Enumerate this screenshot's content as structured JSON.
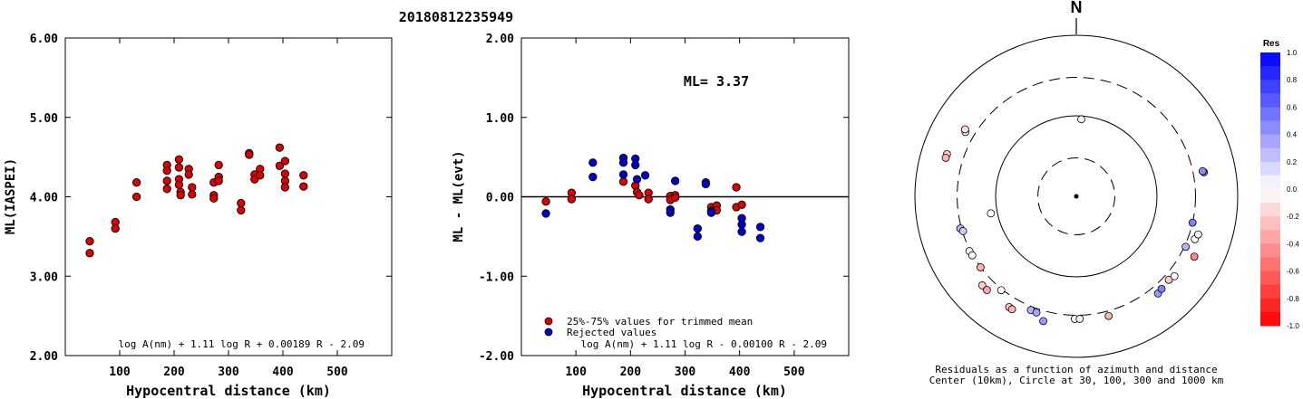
{
  "title": "20180812235949",
  "chart_data": [
    {
      "type": "scatter",
      "xlabel": "Hypocentral distance (km)",
      "ylabel": "ML(IASPEI)",
      "xlim": [
        0,
        600
      ],
      "ylim": [
        2.0,
        6.0
      ],
      "xticks": [
        "100",
        "200",
        "300",
        "400",
        "500"
      ],
      "yticks": [
        "2.00",
        "3.00",
        "4.00",
        "5.00",
        "6.00"
      ],
      "formula": "log A(nm) + 1.11 log R + 0.00189 R - 2.09",
      "points": [
        {
          "x": 45,
          "y": 3.44
        },
        {
          "x": 45,
          "y": 3.29
        },
        {
          "x": 92,
          "y": 3.68
        },
        {
          "x": 92,
          "y": 3.6
        },
        {
          "x": 131,
          "y": 4.18
        },
        {
          "x": 131,
          "y": 4.0
        },
        {
          "x": 187,
          "y": 4.4
        },
        {
          "x": 187,
          "y": 4.33
        },
        {
          "x": 187,
          "y": 4.2
        },
        {
          "x": 187,
          "y": 4.1
        },
        {
          "x": 209,
          "y": 4.47
        },
        {
          "x": 209,
          "y": 4.37
        },
        {
          "x": 209,
          "y": 4.22
        },
        {
          "x": 209,
          "y": 4.15
        },
        {
          "x": 212,
          "y": 4.06
        },
        {
          "x": 212,
          "y": 4.02
        },
        {
          "x": 227,
          "y": 4.35
        },
        {
          "x": 227,
          "y": 4.28
        },
        {
          "x": 233,
          "y": 4.12
        },
        {
          "x": 233,
          "y": 4.03
        },
        {
          "x": 273,
          "y": 4.18
        },
        {
          "x": 273,
          "y": 4.02
        },
        {
          "x": 273,
          "y": 3.98
        },
        {
          "x": 282,
          "y": 4.4
        },
        {
          "x": 282,
          "y": 4.25
        },
        {
          "x": 282,
          "y": 4.2
        },
        {
          "x": 323,
          "y": 3.92
        },
        {
          "x": 323,
          "y": 3.83
        },
        {
          "x": 338,
          "y": 4.55
        },
        {
          "x": 338,
          "y": 4.53
        },
        {
          "x": 348,
          "y": 4.28
        },
        {
          "x": 348,
          "y": 4.22
        },
        {
          "x": 358,
          "y": 4.35
        },
        {
          "x": 358,
          "y": 4.27
        },
        {
          "x": 394,
          "y": 4.62
        },
        {
          "x": 394,
          "y": 4.39
        },
        {
          "x": 404,
          "y": 4.45
        },
        {
          "x": 404,
          "y": 4.29
        },
        {
          "x": 404,
          "y": 4.2
        },
        {
          "x": 404,
          "y": 4.12
        },
        {
          "x": 438,
          "y": 4.27
        },
        {
          "x": 438,
          "y": 4.13
        }
      ]
    },
    {
      "type": "scatter",
      "xlabel": "Hypocentral distance (km)",
      "ylabel": "ML - ML(evt)",
      "xlim": [
        0,
        600
      ],
      "ylim": [
        -2.0,
        2.0
      ],
      "xticks": [
        "100",
        "200",
        "300",
        "400",
        "500"
      ],
      "yticks": [
        "-2.00",
        "-1.00",
        "0.00",
        "1.00",
        "2.00"
      ],
      "annotation": "ML= 3.37",
      "legend": [
        "25%-75% values for trimmed mean",
        "Rejected values"
      ],
      "formula": "log A(nm) + 1.11 log R - 0.00100 R - 2.09",
      "series": [
        {
          "name": "25%-75% values for trimmed mean",
          "color": "#dd0000",
          "points": [
            {
              "x": 45,
              "y": -0.06
            },
            {
              "x": 92,
              "y": 0.05
            },
            {
              "x": 92,
              "y": -0.03
            },
            {
              "x": 187,
              "y": 0.19
            },
            {
              "x": 209,
              "y": 0.14
            },
            {
              "x": 212,
              "y": 0.06
            },
            {
              "x": 216,
              "y": 0.02
            },
            {
              "x": 233,
              "y": 0.05
            },
            {
              "x": 233,
              "y": -0.03
            },
            {
              "x": 273,
              "y": 0.01
            },
            {
              "x": 273,
              "y": -0.04
            },
            {
              "x": 282,
              "y": 0.02
            },
            {
              "x": 282,
              "y": -0.01
            },
            {
              "x": 348,
              "y": -0.13
            },
            {
              "x": 358,
              "y": -0.11
            },
            {
              "x": 358,
              "y": -0.17
            },
            {
              "x": 394,
              "y": 0.12
            },
            {
              "x": 394,
              "y": -0.13
            },
            {
              "x": 404,
              "y": -0.1
            }
          ]
        },
        {
          "name": "Rejected values",
          "color": "#0000cc",
          "points": [
            {
              "x": 45,
              "y": -0.21
            },
            {
              "x": 131,
              "y": 0.43
            },
            {
              "x": 131,
              "y": 0.25
            },
            {
              "x": 187,
              "y": 0.49
            },
            {
              "x": 187,
              "y": 0.43
            },
            {
              "x": 187,
              "y": 0.28
            },
            {
              "x": 209,
              "y": 0.48
            },
            {
              "x": 209,
              "y": 0.4
            },
            {
              "x": 212,
              "y": 0.22
            },
            {
              "x": 227,
              "y": 0.27
            },
            {
              "x": 273,
              "y": -0.16
            },
            {
              "x": 273,
              "y": -0.2
            },
            {
              "x": 282,
              "y": 0.2
            },
            {
              "x": 323,
              "y": -0.4
            },
            {
              "x": 323,
              "y": -0.5
            },
            {
              "x": 338,
              "y": 0.18
            },
            {
              "x": 338,
              "y": 0.16
            },
            {
              "x": 348,
              "y": -0.18
            },
            {
              "x": 348,
              "y": -0.2
            },
            {
              "x": 404,
              "y": -0.27
            },
            {
              "x": 404,
              "y": -0.35
            },
            {
              "x": 404,
              "y": -0.44
            },
            {
              "x": 438,
              "y": -0.38
            },
            {
              "x": 438,
              "y": -0.52
            }
          ]
        }
      ]
    },
    {
      "type": "polar-scatter",
      "north_label": "N",
      "caption": [
        "Residuals as a function of azimuth and distance",
        "Center (10km), Circle at 30, 100, 300 and 1000 km"
      ],
      "colorbar": {
        "title": "Res",
        "min": -1.0,
        "max": 1.0,
        "ticks": [
          "1.0",
          "0.8",
          "0.6",
          "0.4",
          "0.2",
          "0.0",
          "-0.2",
          "-0.4",
          "-0.6",
          "-0.8",
          "-1.0"
        ]
      },
      "rings": [
        {
          "distance_km": 30,
          "style": "dashed"
        },
        {
          "distance_km": 100,
          "style": "solid"
        },
        {
          "distance_km": 300,
          "style": "dashed"
        },
        {
          "distance_km": 1000,
          "style": "solid"
        }
      ],
      "points": [
        {
          "azimuth_deg": 3.7,
          "distance_km": 91,
          "res": 0.05
        },
        {
          "azimuth_deg": 300.2,
          "distance_km": 388,
          "res": -0.05
        },
        {
          "azimuth_deg": 301.1,
          "distance_km": 407,
          "res": -0.12
        },
        {
          "azimuth_deg": 288.1,
          "distance_km": 485,
          "res": -0.2
        },
        {
          "azimuth_deg": 286.5,
          "distance_km": 487,
          "res": -0.3
        },
        {
          "azimuth_deg": 258.7,
          "distance_km": 120,
          "res": 0.0
        },
        {
          "azimuth_deg": 254.5,
          "distance_km": 310,
          "res": 0.3
        },
        {
          "azimuth_deg": 252.9,
          "distance_km": 294,
          "res": 0.2
        },
        {
          "azimuth_deg": 242.8,
          "distance_km": 308,
          "res": 0.05
        },
        {
          "azimuth_deg": 240.4,
          "distance_km": 304,
          "res": -0.05
        },
        {
          "azimuth_deg": 233.4,
          "distance_km": 301,
          "res": -0.3
        },
        {
          "azimuth_deg": 226.5,
          "distance_km": 404,
          "res": -0.2
        },
        {
          "azimuth_deg": 223.6,
          "distance_km": 404,
          "res": -0.35
        },
        {
          "azimuth_deg": 218.6,
          "distance_km": 310,
          "res": 0.0
        },
        {
          "azimuth_deg": 211.2,
          "distance_km": 405,
          "res": -0.25
        },
        {
          "azimuth_deg": 209.6,
          "distance_km": 410,
          "res": -0.3
        },
        {
          "azimuth_deg": 201.7,
          "distance_km": 332,
          "res": 0.3
        },
        {
          "azimuth_deg": 198.9,
          "distance_km": 335,
          "res": 0.35
        },
        {
          "azimuth_deg": 194.8,
          "distance_km": 400,
          "res": 0.4
        },
        {
          "azimuth_deg": 180.7,
          "distance_km": 333,
          "res": 0.0
        },
        {
          "azimuth_deg": 178.4,
          "distance_km": 333,
          "res": 0.05
        },
        {
          "azimuth_deg": 164.9,
          "distance_km": 346,
          "res": -0.3
        },
        {
          "azimuth_deg": 140.0,
          "distance_km": 376,
          "res": 0.4
        },
        {
          "azimuth_deg": 137.4,
          "distance_km": 364,
          "res": 0.5
        },
        {
          "azimuth_deg": 132.1,
          "distance_km": 351,
          "res": -0.2
        },
        {
          "azimuth_deg": 129.2,
          "distance_km": 371,
          "res": 0.0
        },
        {
          "azimuth_deg": 117.1,
          "distance_km": 439,
          "res": -0.45
        },
        {
          "azimuth_deg": 114.8,
          "distance_km": 311,
          "res": 0.3
        },
        {
          "azimuth_deg": 109.9,
          "distance_km": 365,
          "res": 0.0
        },
        {
          "azimuth_deg": 107.4,
          "distance_km": 382,
          "res": 0.05
        },
        {
          "azimuth_deg": 102.8,
          "distance_km": 300,
          "res": 0.5
        },
        {
          "azimuth_deg": 79.3,
          "distance_km": 407,
          "res": 0.55
        },
        {
          "azimuth_deg": 78.7,
          "distance_km": 394,
          "res": 0.45
        }
      ]
    }
  ]
}
